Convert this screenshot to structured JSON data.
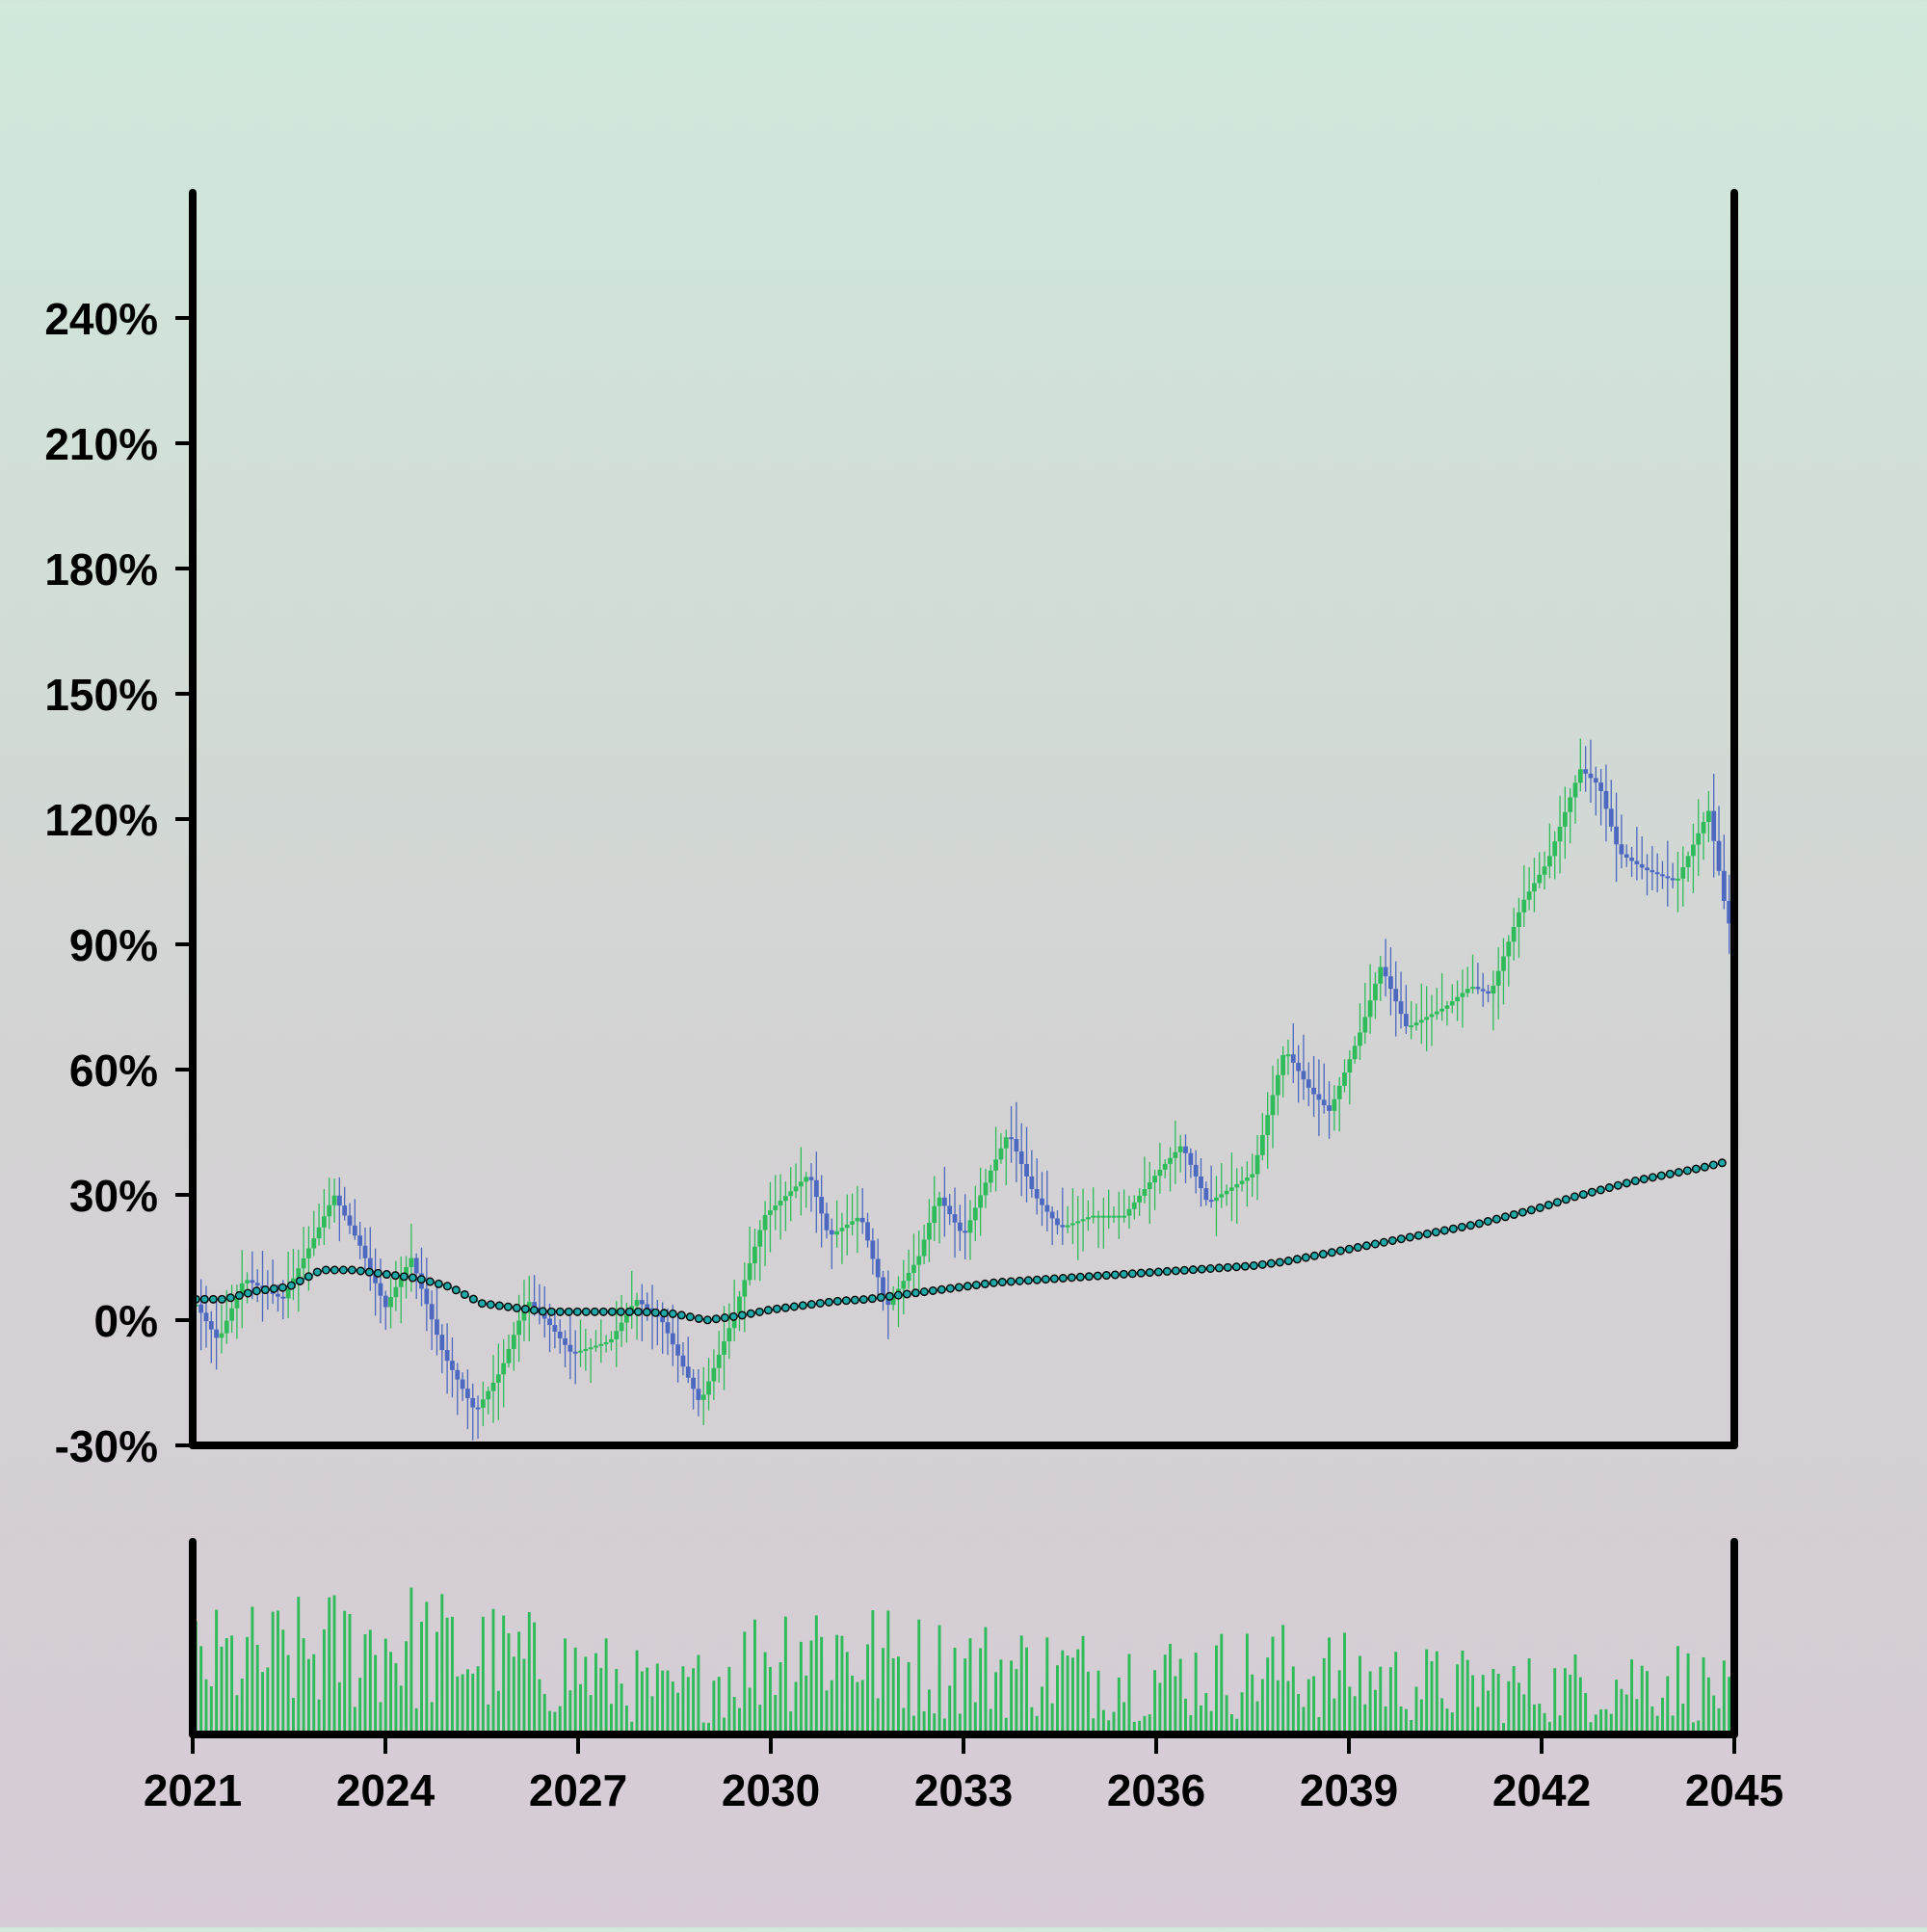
{
  "chart_data": {
    "type": "candlestick",
    "xlim": [
      2021,
      2045
    ],
    "ylim": [
      -30,
      270
    ],
    "x_ticks": [
      2021,
      2024,
      2027,
      2030,
      2033,
      2036,
      2039,
      2042,
      2045
    ],
    "x_tick_labels": [
      "2021",
      "2024",
      "2027",
      "2030",
      "2033",
      "2036",
      "2039",
      "2042",
      "2045"
    ],
    "y_ticks": [
      -30,
      0,
      30,
      60,
      90,
      120,
      150,
      180,
      210,
      240
    ],
    "y_tick_labels": [
      "-30%",
      "0%",
      "30%",
      "60%",
      "90%",
      "120%",
      "150%",
      "180%",
      "210%",
      "240%"
    ],
    "close_anchors": [
      {
        "x": 2021.0,
        "y": 5
      },
      {
        "x": 2021.2,
        "y": 0
      },
      {
        "x": 2021.4,
        "y": -5
      },
      {
        "x": 2021.8,
        "y": 10
      },
      {
        "x": 2022.4,
        "y": 5
      },
      {
        "x": 2022.9,
        "y": 20
      },
      {
        "x": 2023.2,
        "y": 30
      },
      {
        "x": 2023.6,
        "y": 18
      },
      {
        "x": 2024.0,
        "y": 3
      },
      {
        "x": 2024.4,
        "y": 15
      },
      {
        "x": 2024.9,
        "y": -8
      },
      {
        "x": 2025.4,
        "y": -22
      },
      {
        "x": 2025.8,
        "y": -12
      },
      {
        "x": 2026.2,
        "y": 5
      },
      {
        "x": 2026.5,
        "y": 0
      },
      {
        "x": 2026.9,
        "y": -8
      },
      {
        "x": 2027.5,
        "y": -5
      },
      {
        "x": 2027.9,
        "y": 5
      },
      {
        "x": 2028.3,
        "y": 0
      },
      {
        "x": 2028.6,
        "y": -10
      },
      {
        "x": 2028.9,
        "y": -20
      },
      {
        "x": 2029.4,
        "y": 0
      },
      {
        "x": 2029.9,
        "y": 25
      },
      {
        "x": 2030.6,
        "y": 35
      },
      {
        "x": 2030.9,
        "y": 20
      },
      {
        "x": 2031.4,
        "y": 25
      },
      {
        "x": 2031.8,
        "y": 3
      },
      {
        "x": 2032.3,
        "y": 15
      },
      {
        "x": 2032.6,
        "y": 30
      },
      {
        "x": 2033.0,
        "y": 20
      },
      {
        "x": 2033.4,
        "y": 35
      },
      {
        "x": 2033.7,
        "y": 45
      },
      {
        "x": 2034.1,
        "y": 30
      },
      {
        "x": 2034.5,
        "y": 22
      },
      {
        "x": 2035.0,
        "y": 25
      },
      {
        "x": 2035.5,
        "y": 25
      },
      {
        "x": 2036.0,
        "y": 35
      },
      {
        "x": 2036.4,
        "y": 42
      },
      {
        "x": 2036.8,
        "y": 28
      },
      {
        "x": 2037.5,
        "y": 35
      },
      {
        "x": 2038.0,
        "y": 65
      },
      {
        "x": 2038.4,
        "y": 55
      },
      {
        "x": 2038.7,
        "y": 50
      },
      {
        "x": 2039.2,
        "y": 70
      },
      {
        "x": 2039.5,
        "y": 85
      },
      {
        "x": 2039.9,
        "y": 70
      },
      {
        "x": 2040.5,
        "y": 75
      },
      {
        "x": 2040.9,
        "y": 80
      },
      {
        "x": 2041.2,
        "y": 78
      },
      {
        "x": 2041.7,
        "y": 100
      },
      {
        "x": 2042.1,
        "y": 110
      },
      {
        "x": 2042.6,
        "y": 132
      },
      {
        "x": 2042.9,
        "y": 128
      },
      {
        "x": 2043.2,
        "y": 112
      },
      {
        "x": 2043.6,
        "y": 108
      },
      {
        "x": 2044.1,
        "y": 105
      },
      {
        "x": 2044.6,
        "y": 122
      },
      {
        "x": 2044.9,
        "y": 95
      }
    ],
    "moving_average": [
      {
        "x": 2021.0,
        "y": 5
      },
      {
        "x": 2021.5,
        "y": 5
      },
      {
        "x": 2022.0,
        "y": 7
      },
      {
        "x": 2022.5,
        "y": 8
      },
      {
        "x": 2023.0,
        "y": 12
      },
      {
        "x": 2023.5,
        "y": 12
      },
      {
        "x": 2024.0,
        "y": 11
      },
      {
        "x": 2024.5,
        "y": 10
      },
      {
        "x": 2025.0,
        "y": 8
      },
      {
        "x": 2025.5,
        "y": 4
      },
      {
        "x": 2026.0,
        "y": 3
      },
      {
        "x": 2026.5,
        "y": 2
      },
      {
        "x": 2027.0,
        "y": 2
      },
      {
        "x": 2027.5,
        "y": 2
      },
      {
        "x": 2028.0,
        "y": 2
      },
      {
        "x": 2028.5,
        "y": 1.5
      },
      {
        "x": 2029.0,
        "y": 0
      },
      {
        "x": 2029.5,
        "y": 1
      },
      {
        "x": 2030.0,
        "y": 2.5
      },
      {
        "x": 2030.5,
        "y": 3.5
      },
      {
        "x": 2031.0,
        "y": 4.5
      },
      {
        "x": 2031.5,
        "y": 5
      },
      {
        "x": 2032.0,
        "y": 6
      },
      {
        "x": 2032.5,
        "y": 7
      },
      {
        "x": 2033.0,
        "y": 8
      },
      {
        "x": 2033.5,
        "y": 9
      },
      {
        "x": 2034.0,
        "y": 9.5
      },
      {
        "x": 2034.5,
        "y": 10
      },
      {
        "x": 2035.0,
        "y": 10.5
      },
      {
        "x": 2035.5,
        "y": 11
      },
      {
        "x": 2036.0,
        "y": 11.5
      },
      {
        "x": 2036.5,
        "y": 12
      },
      {
        "x": 2037.0,
        "y": 12.5
      },
      {
        "x": 2037.5,
        "y": 13
      },
      {
        "x": 2038.0,
        "y": 14
      },
      {
        "x": 2038.5,
        "y": 15.5
      },
      {
        "x": 2039.0,
        "y": 17
      },
      {
        "x": 2039.5,
        "y": 18.5
      },
      {
        "x": 2040.0,
        "y": 20
      },
      {
        "x": 2040.5,
        "y": 21.5
      },
      {
        "x": 2041.0,
        "y": 23
      },
      {
        "x": 2041.5,
        "y": 25
      },
      {
        "x": 2042.0,
        "y": 27
      },
      {
        "x": 2042.5,
        "y": 29.5
      },
      {
        "x": 2043.0,
        "y": 31.5
      },
      {
        "x": 2043.5,
        "y": 33.5
      },
      {
        "x": 2044.0,
        "y": 35
      },
      {
        "x": 2044.5,
        "y": 36.5
      },
      {
        "x": 2044.9,
        "y": 38
      }
    ],
    "volume_anchors": [
      {
        "x": 2021.0,
        "v": 0.55
      },
      {
        "x": 2022.5,
        "v": 0.6
      },
      {
        "x": 2024.0,
        "v": 0.72
      },
      {
        "x": 2025.5,
        "v": 0.6
      },
      {
        "x": 2027.0,
        "v": 0.5
      },
      {
        "x": 2028.5,
        "v": 0.3
      },
      {
        "x": 2030.5,
        "v": 0.75
      },
      {
        "x": 2032.0,
        "v": 0.55
      },
      {
        "x": 2034.0,
        "v": 0.5
      },
      {
        "x": 2036.0,
        "v": 0.45
      },
      {
        "x": 2038.0,
        "v": 0.5
      },
      {
        "x": 2040.0,
        "v": 0.4
      },
      {
        "x": 2042.0,
        "v": 0.35
      },
      {
        "x": 2044.0,
        "v": 0.45
      },
      {
        "x": 2045.0,
        "v": 0.3
      }
    ],
    "candle_count": 300,
    "grid": false,
    "legend": "none",
    "colors": {
      "up": "#2ebc5a",
      "down": "#4c68c0",
      "moving_average_fill": "#1fa8a8",
      "moving_average_edge": "#000000",
      "volume": "#2ebc5a",
      "axes": "#000000",
      "background_top": "#d0e9db",
      "background_bottom": "#d6cbd6"
    }
  }
}
